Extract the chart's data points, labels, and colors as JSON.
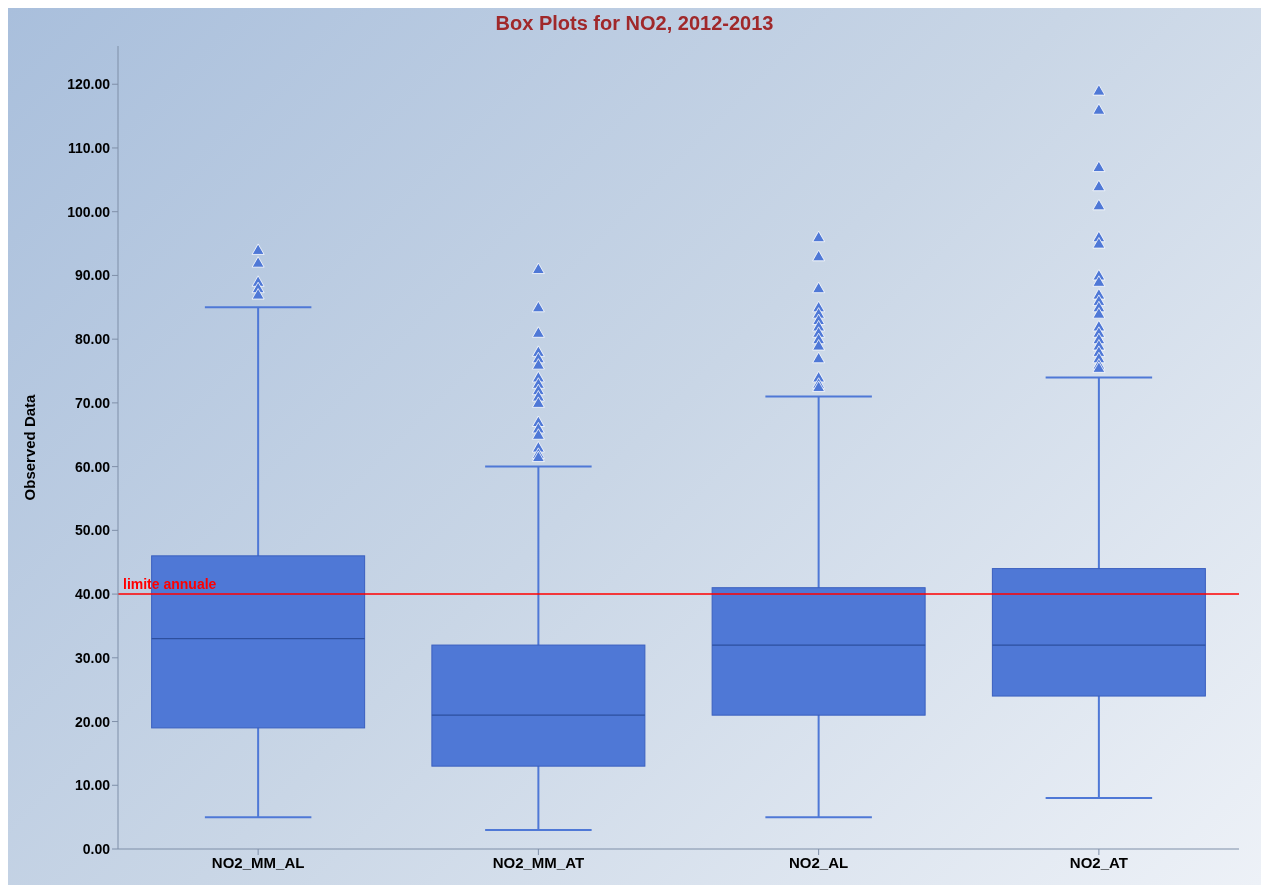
{
  "chart_data": {
    "type": "box",
    "title": "Box Plots for NO2, 2012-2013",
    "ylabel": "Observed Data",
    "categories": [
      "NO2_MM_AL",
      "NO2_MM_AT",
      "NO2_AL",
      "NO2_AT"
    ],
    "color": "#4f78d6",
    "marker": "triangle",
    "grid": false,
    "legend": false,
    "ylim": [
      0,
      126
    ],
    "yticks": [
      {
        "value": 0,
        "label": "0.00"
      },
      {
        "value": 10,
        "label": "10.00"
      },
      {
        "value": 20,
        "label": "20.00"
      },
      {
        "value": 30,
        "label": "30.00"
      },
      {
        "value": 40,
        "label": "40.00"
      },
      {
        "value": 50,
        "label": "50.00"
      },
      {
        "value": 60,
        "label": "60.00"
      },
      {
        "value": 70,
        "label": "70.00"
      },
      {
        "value": 80,
        "label": "80.00"
      },
      {
        "value": 90,
        "label": "90.00"
      },
      {
        "value": 100,
        "label": "100.00"
      },
      {
        "value": 110,
        "label": "110.00"
      },
      {
        "value": 120,
        "label": "120.00"
      }
    ],
    "boxes": [
      {
        "low": 5,
        "q1": 19,
        "median": 33,
        "q3": 46,
        "high": 85,
        "outliers": [
          94,
          92,
          89,
          88,
          87
        ]
      },
      {
        "low": 3,
        "q1": 13,
        "median": 21,
        "q3": 32,
        "high": 60,
        "outliers": [
          91,
          85,
          81,
          78,
          77,
          76,
          74,
          73,
          72,
          71,
          70,
          67,
          66,
          65,
          63,
          62,
          61.5
        ]
      },
      {
        "low": 5,
        "q1": 21,
        "median": 32,
        "q3": 41,
        "high": 71,
        "outliers": [
          96,
          93,
          88,
          85,
          84,
          83,
          82,
          81,
          80,
          79,
          77,
          74,
          73,
          72.5
        ]
      },
      {
        "low": 8,
        "q1": 24,
        "median": 32,
        "q3": 44,
        "high": 74,
        "outliers": [
          119,
          116,
          107,
          104,
          101,
          96,
          95,
          90,
          89,
          87,
          86,
          85,
          84,
          82,
          81,
          80,
          79,
          78,
          77,
          76,
          75.5
        ]
      }
    ],
    "ref_lines": [
      {
        "axis": "y",
        "value": 40,
        "label": "limite annuale",
        "color": "#ff0000"
      }
    ]
  }
}
